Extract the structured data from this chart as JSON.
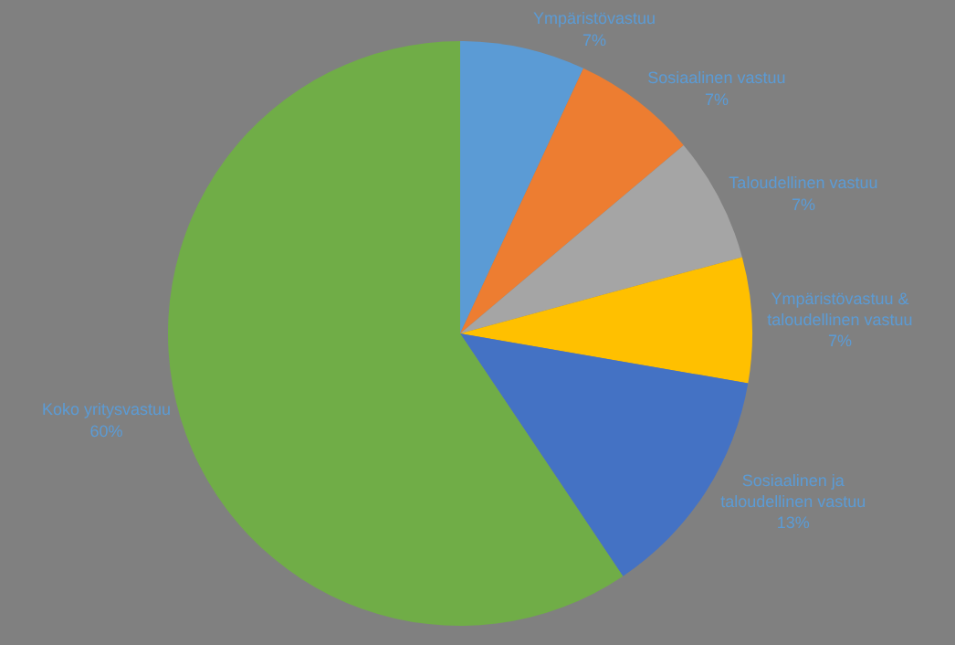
{
  "chart_data": {
    "type": "pie",
    "categories": [
      "Ympäristövastuu",
      "Sosiaalinen vastuu",
      "Taloudellinen vastuu",
      "Ympäristövastuu & taloudellinen vastuu",
      "Sosiaalinen ja taloudellinen vastuu",
      "Koko yritysvastuu"
    ],
    "values": [
      7,
      7,
      7,
      7,
      13,
      60
    ],
    "colors": [
      "#5b9bd5",
      "#ed7d31",
      "#a5a5a5",
      "#ffc000",
      "#4472c4",
      "#70ad47"
    ],
    "value_labels": [
      "7%",
      "7%",
      "7%",
      "7%",
      "13%",
      "60%"
    ],
    "legend": false
  }
}
